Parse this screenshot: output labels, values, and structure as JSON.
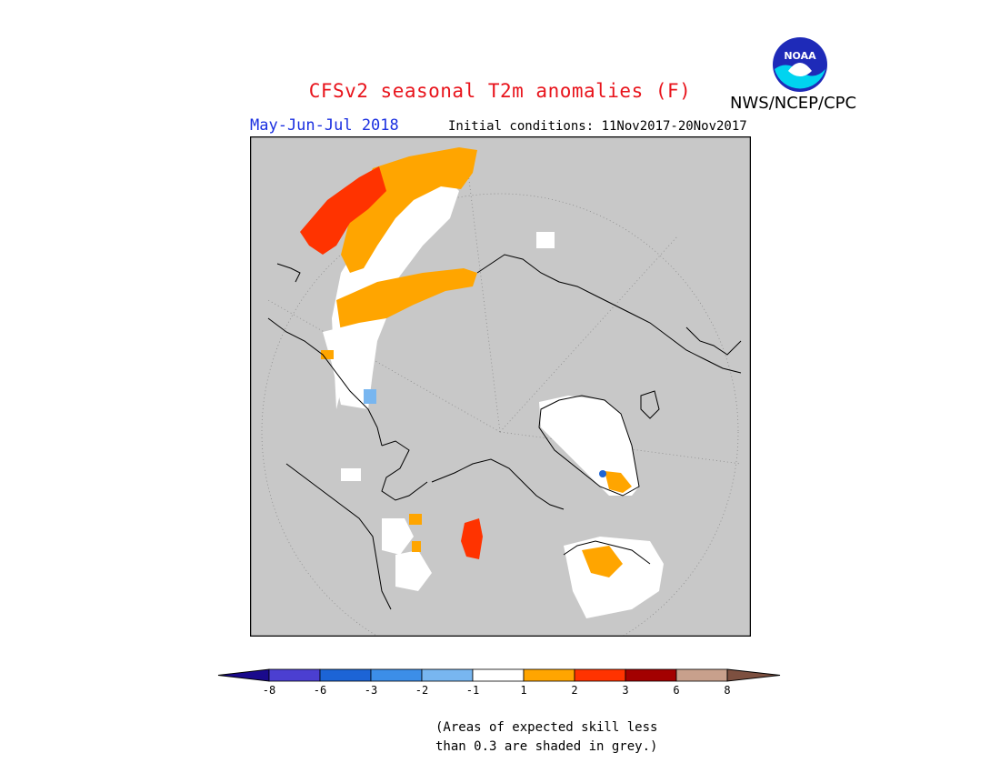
{
  "header": {
    "title": "CFSv2 seasonal T2m anomalies (F)",
    "season": "May-Jun-Jul 2018",
    "initial_conditions": "Initial conditions: 11Nov2017-20Nov2017",
    "agency": "NWS/NCEP/CPC",
    "logo_text": "NOAA"
  },
  "legend": {
    "ticks": [
      "-8",
      "-6",
      "-3",
      "-2",
      "-1",
      "1",
      "2",
      "3",
      "6",
      "8"
    ],
    "colors": [
      "#1a0a8c",
      "#4b3fd1",
      "#1c64d6",
      "#3c8ee8",
      "#78b6f0",
      "#ffffff",
      "#ffa500",
      "#ff3300",
      "#a30000",
      "#c8a08c",
      "#7d5040"
    ],
    "note_line1": "(Areas of expected skill less",
    "note_line2": "than 0.3 are shaded in grey.)"
  },
  "palette": {
    "skill_grey": "#c8c8c8",
    "white_band": "#ffffff",
    "orange": "#ffa500",
    "red_orange": "#ff3300",
    "light_blue": "#78b6f0",
    "blue": "#1c64d6"
  }
}
